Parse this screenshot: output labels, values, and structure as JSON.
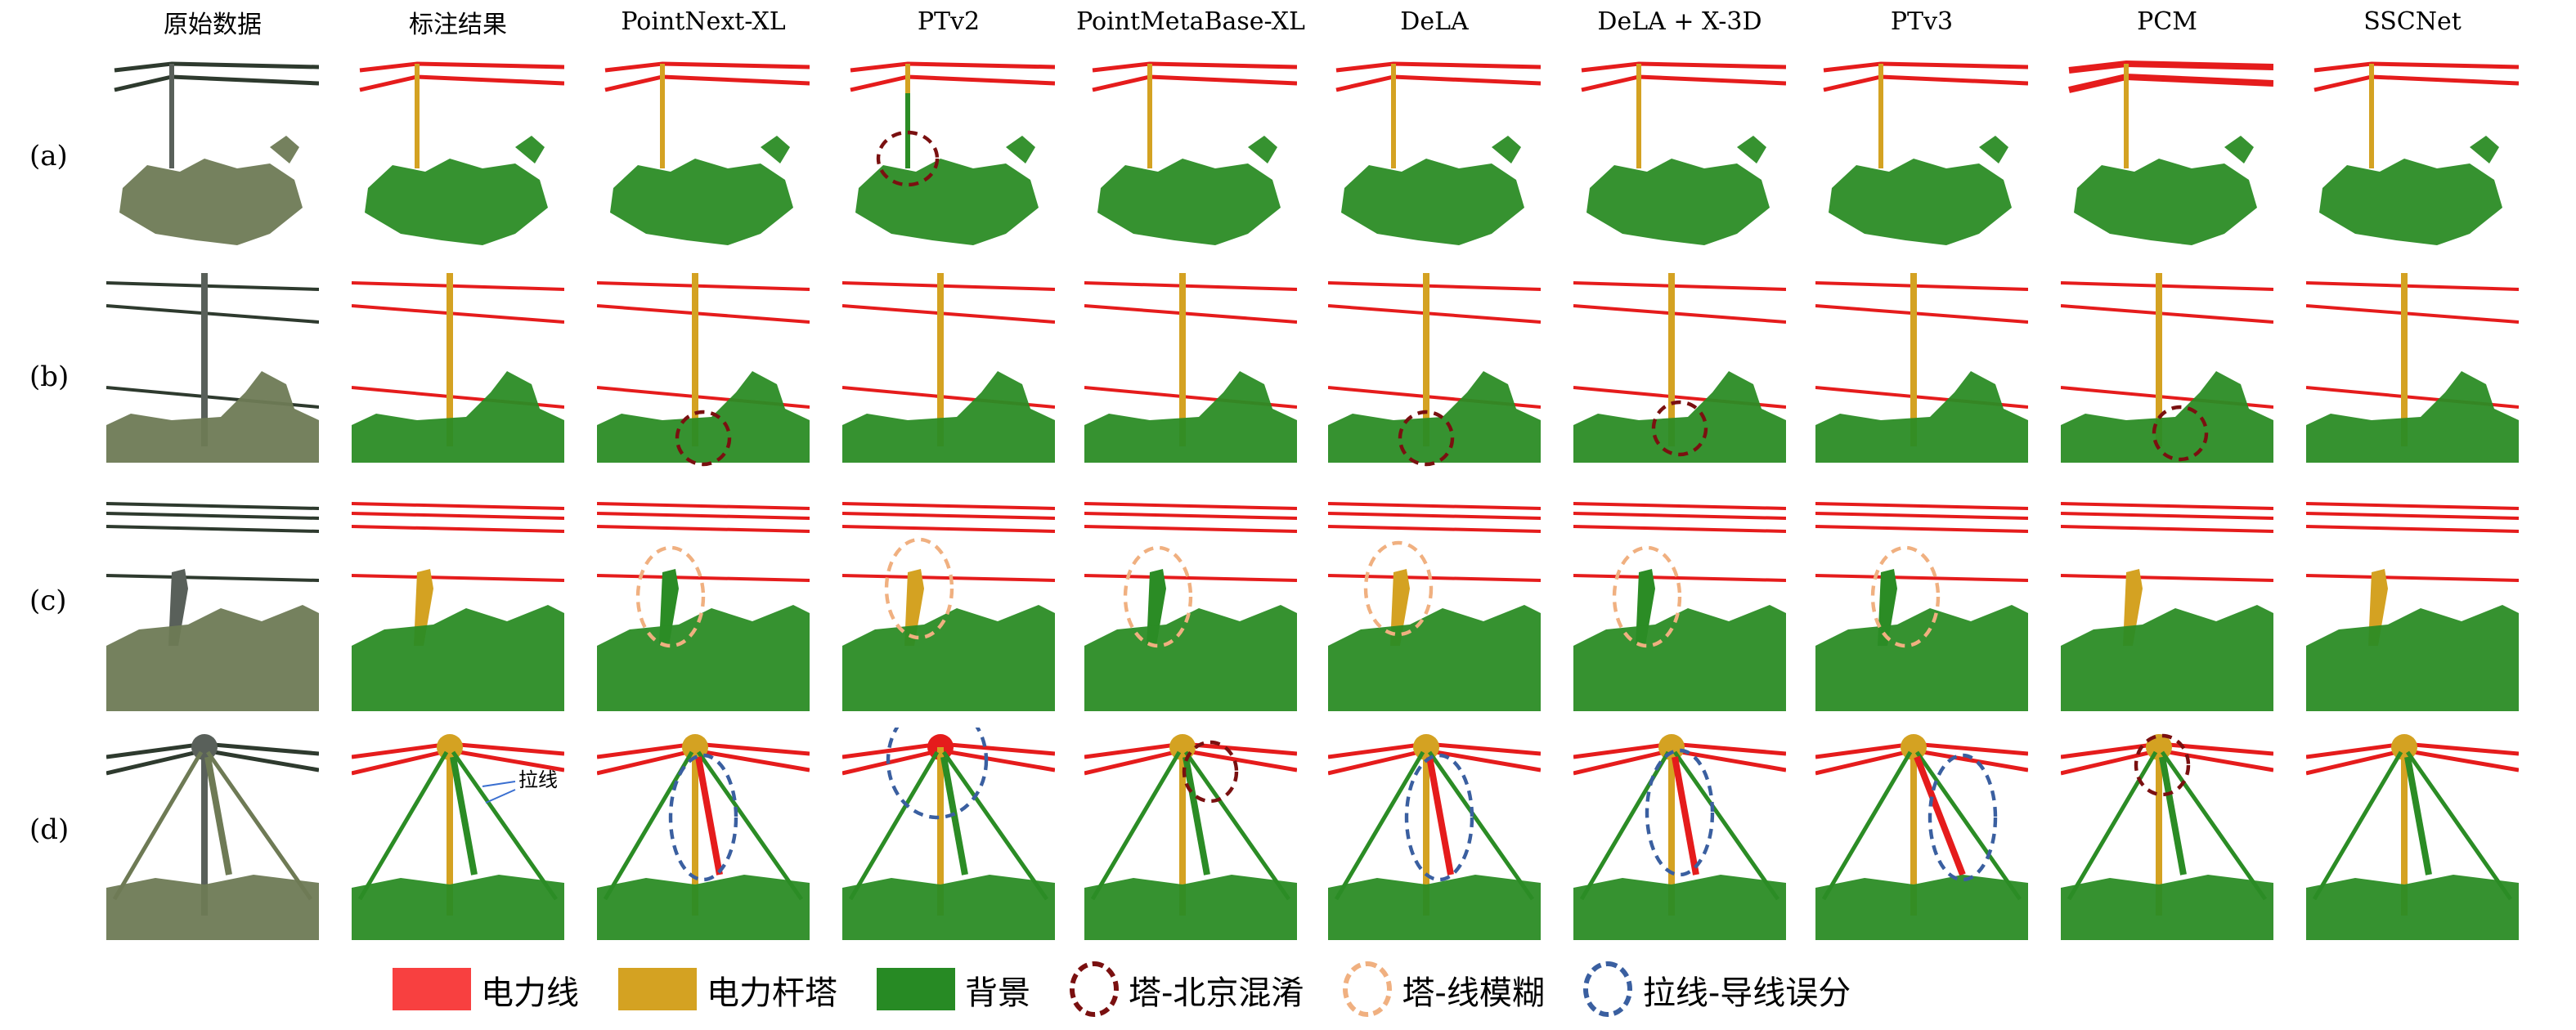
{
  "columns": [
    "原始数据",
    "标注结果",
    "PointNext-XL",
    "PTv2",
    "PointMetaBase-XL",
    "DeLA",
    "DeLA + X-3D",
    "PTv3",
    "PCM",
    "SSCNet"
  ],
  "rows": [
    "(a)",
    "(b)",
    "(c)",
    "(d)"
  ],
  "annotation_label": "拉线",
  "legend": [
    {
      "label": "电力线",
      "kind": "swatch",
      "color": "#f84040"
    },
    {
      "label": "电力杆塔",
      "kind": "swatch",
      "color": "#d4a222"
    },
    {
      "label": "背景",
      "kind": "swatch",
      "color": "#278a24"
    },
    {
      "label": "塔-北京混淆",
      "kind": "ellipse",
      "color": "#7a1010"
    },
    {
      "label": "塔-线模糊",
      "kind": "ellipse",
      "color": "#f0b080"
    },
    {
      "label": "拉线-导线误分",
      "kind": "ellipse",
      "color": "#3a5fa0"
    }
  ],
  "colors": {
    "line": "#e51c1c",
    "pole": "#d4a222",
    "bg": "#2b8c25",
    "raw": "#6e7a55"
  }
}
